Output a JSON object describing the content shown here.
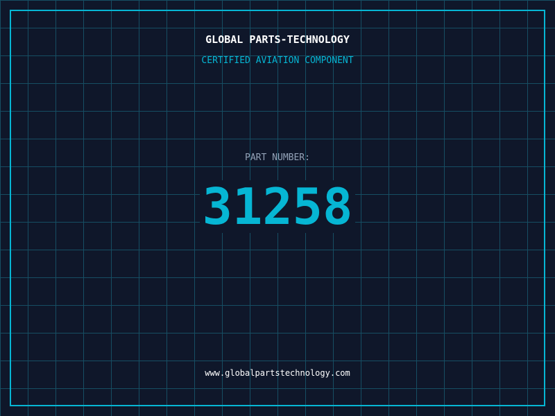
{
  "header": {
    "title": "GLOBAL PARTS-TECHNOLOGY",
    "subtitle": "CERTIFIED AVIATION COMPONENT"
  },
  "part": {
    "label": "PART NUMBER:",
    "number": "31258"
  },
  "footer": {
    "url": "www.globalpartstechnology.com"
  },
  "colors": {
    "background": "#0f172a",
    "grid": "#164e63",
    "accent": "#06b6d4",
    "label": "#94a3b8",
    "text": "#ffffff"
  }
}
